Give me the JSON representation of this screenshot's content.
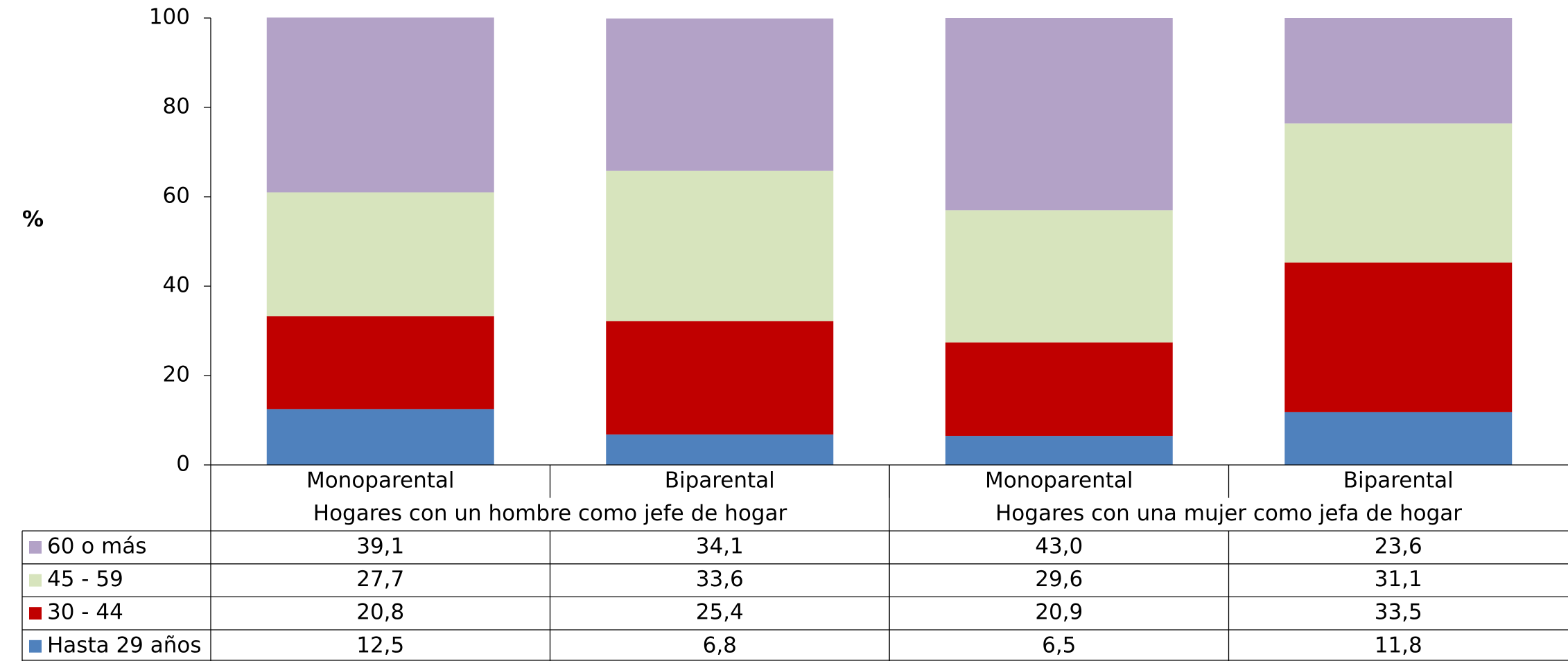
{
  "chart_data": {
    "type": "stacked_bar",
    "y_label": "%",
    "categories": [
      "Monoparental",
      "Biparental",
      "Monoparental",
      "Biparental"
    ],
    "category_groups": [
      "Hogares con un hombre como jefe de hogar",
      "Hogares con una mujer como jefa de hogar"
    ],
    "series": [
      {
        "name": "Hasta 29 años",
        "color": "#4f81bd",
        "values": [
          12.5,
          6.8,
          6.5,
          11.8
        ],
        "value_labels": [
          "12,5",
          "6,8",
          "6,5",
          "11,8"
        ]
      },
      {
        "name": "30 - 44",
        "color": "#c00000",
        "values": [
          20.8,
          25.4,
          20.9,
          33.5
        ],
        "value_labels": [
          "20,8",
          "25,4",
          "20,9",
          "33,5"
        ]
      },
      {
        "name": "45 - 59",
        "color": "#d7e4bd",
        "values": [
          27.7,
          33.6,
          29.6,
          31.1
        ],
        "value_labels": [
          "27,7",
          "33,6",
          "29,6",
          "31,1"
        ]
      },
      {
        "name": "60 o más",
        "color": "#b3a2c7",
        "values": [
          39.1,
          34.1,
          43.0,
          23.6
        ],
        "value_labels": [
          "39,1",
          "34,1",
          "43,0",
          "23,6"
        ]
      }
    ],
    "ylim": [
      0,
      100
    ],
    "yticks": [
      0,
      20,
      40,
      60,
      80,
      100
    ],
    "grid": false,
    "legend": "table"
  }
}
